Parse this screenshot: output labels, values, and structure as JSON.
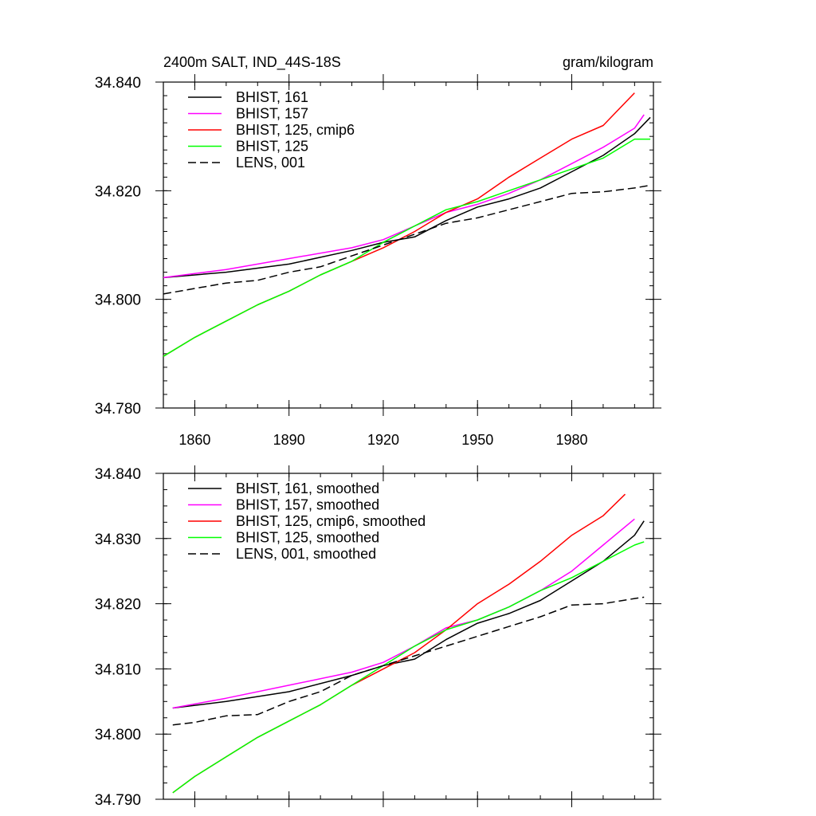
{
  "chart_data": [
    {
      "type": "line",
      "title": "2400m SALT, IND_44S-18S",
      "units": "gram/kilogram",
      "xlabel": "",
      "ylabel": "",
      "xlim": [
        1850,
        2006
      ],
      "ylim": [
        34.78,
        34.84
      ],
      "x_ticks": [
        1860,
        1890,
        1920,
        1950,
        1980
      ],
      "x_tick_labels": [
        "1860",
        "1890",
        "1920",
        "1950",
        "1980"
      ],
      "y_ticks": [
        34.78,
        34.8,
        34.82,
        34.84
      ],
      "y_tick_labels": [
        "34.780",
        "34.800",
        "34.820",
        "34.840"
      ],
      "legend_position": "top-left",
      "series": [
        {
          "name": "BHIST, 161",
          "color": "#000000",
          "dashed": false,
          "x": [
            1850,
            1870,
            1890,
            1910,
            1920,
            1930,
            1940,
            1950,
            1960,
            1970,
            1980,
            1990,
            2000,
            2005
          ],
          "y": [
            34.804,
            34.805,
            34.8065,
            34.809,
            34.8105,
            34.8115,
            34.8145,
            34.817,
            34.8185,
            34.8205,
            34.8235,
            34.8265,
            34.8305,
            34.8335
          ]
        },
        {
          "name": "BHIST, 157",
          "color": "#ff00ff",
          "dashed": false,
          "x": [
            1850,
            1870,
            1890,
            1910,
            1920,
            1930,
            1940,
            1950,
            1960,
            1970,
            1980,
            1990,
            2000,
            2003
          ],
          "y": [
            34.804,
            34.8055,
            34.8075,
            34.8095,
            34.811,
            34.8135,
            34.816,
            34.8175,
            34.8195,
            34.822,
            34.825,
            34.828,
            34.8315,
            34.834
          ]
        },
        {
          "name": "BHIST, 125, cmip6",
          "color": "#ff0000",
          "dashed": false,
          "x": [
            1850,
            1860,
            1870,
            1880,
            1890,
            1900,
            1910,
            1920,
            1930,
            1940,
            1950,
            1960,
            1970,
            1980,
            1990,
            2000
          ],
          "y": [
            34.7895,
            34.793,
            34.796,
            34.799,
            34.8015,
            34.8045,
            34.807,
            34.8095,
            34.8125,
            34.816,
            34.8185,
            34.8225,
            34.826,
            34.8295,
            34.832,
            34.838
          ]
        },
        {
          "name": "BHIST, 125",
          "color": "#00ff00",
          "dashed": false,
          "x": [
            1850,
            1860,
            1870,
            1880,
            1890,
            1900,
            1910,
            1920,
            1930,
            1940,
            1950,
            1960,
            1970,
            1980,
            1990,
            2000,
            2005
          ],
          "y": [
            34.7895,
            34.793,
            34.796,
            34.799,
            34.8015,
            34.8045,
            34.807,
            34.8105,
            34.8135,
            34.8165,
            34.818,
            34.82,
            34.822,
            34.824,
            34.826,
            34.8295,
            34.8295
          ]
        },
        {
          "name": "LENS, 001",
          "color": "#000000",
          "dashed": true,
          "x": [
            1850,
            1860,
            1870,
            1880,
            1890,
            1900,
            1910,
            1920,
            1930,
            1940,
            1950,
            1960,
            1970,
            1980,
            1990,
            2000,
            2005
          ],
          "y": [
            34.801,
            34.802,
            34.803,
            34.8035,
            34.805,
            34.806,
            34.808,
            34.81,
            34.812,
            34.814,
            34.815,
            34.8165,
            34.818,
            34.8195,
            34.8198,
            34.8205,
            34.821
          ]
        }
      ]
    },
    {
      "type": "line",
      "title": "",
      "xlabel": "",
      "ylabel": "",
      "xlim": [
        1850,
        2006
      ],
      "ylim": [
        34.79,
        34.84
      ],
      "x_ticks": [
        1860,
        1890,
        1920,
        1950,
        1980
      ],
      "y_ticks": [
        34.79,
        34.8,
        34.81,
        34.82,
        34.83,
        34.84
      ],
      "y_tick_labels": [
        "34.790",
        "34.800",
        "34.810",
        "34.820",
        "34.830",
        "34.840"
      ],
      "legend_position": "top-left",
      "series": [
        {
          "name": "BHIST, 161, smoothed",
          "color": "#000000",
          "dashed": false,
          "x": [
            1853,
            1870,
            1890,
            1910,
            1920,
            1930,
            1940,
            1950,
            1960,
            1970,
            1980,
            1990,
            2000,
            2003
          ],
          "y": [
            34.804,
            34.805,
            34.8065,
            34.809,
            34.8105,
            34.8115,
            34.8145,
            34.817,
            34.8185,
            34.8205,
            34.8235,
            34.8265,
            34.8305,
            34.8327
          ]
        },
        {
          "name": "BHIST, 157, smoothed",
          "color": "#ff00ff",
          "dashed": false,
          "x": [
            1853,
            1870,
            1890,
            1910,
            1920,
            1930,
            1940,
            1950,
            1960,
            1970,
            1980,
            1990,
            2000
          ],
          "y": [
            34.804,
            34.8055,
            34.8075,
            34.8095,
            34.811,
            34.8135,
            34.8163,
            34.8175,
            34.8195,
            34.822,
            34.825,
            34.829,
            34.833
          ]
        },
        {
          "name": "BHIST, 125, cmip6, smoothed",
          "color": "#ff0000",
          "dashed": false,
          "x": [
            1853,
            1860,
            1870,
            1880,
            1890,
            1900,
            1910,
            1920,
            1930,
            1940,
            1950,
            1960,
            1970,
            1980,
            1990,
            1997
          ],
          "y": [
            34.791,
            34.7935,
            34.7965,
            34.7995,
            34.802,
            34.8045,
            34.8075,
            34.81,
            34.8125,
            34.816,
            34.82,
            34.823,
            34.8265,
            34.8305,
            34.8335,
            34.8368
          ]
        },
        {
          "name": "BHIST, 125, smoothed",
          "color": "#00ff00",
          "dashed": false,
          "x": [
            1853,
            1860,
            1870,
            1880,
            1890,
            1900,
            1910,
            1920,
            1930,
            1940,
            1950,
            1960,
            1970,
            1980,
            1990,
            2000,
            2003
          ],
          "y": [
            34.791,
            34.7935,
            34.7965,
            34.7995,
            34.802,
            34.8045,
            34.8075,
            34.8105,
            34.8135,
            34.816,
            34.8175,
            34.8195,
            34.822,
            34.824,
            34.8265,
            34.829,
            34.8295
          ]
        },
        {
          "name": "LENS, 001, smoothed",
          "color": "#000000",
          "dashed": true,
          "x": [
            1853,
            1860,
            1870,
            1880,
            1890,
            1900,
            1910,
            1920,
            1930,
            1940,
            1950,
            1960,
            1970,
            1980,
            1990,
            2000,
            2003
          ],
          "y": [
            34.8014,
            34.8018,
            34.8028,
            34.803,
            34.805,
            34.8065,
            34.809,
            34.8105,
            34.812,
            34.8135,
            34.815,
            34.8165,
            34.818,
            34.8198,
            34.82,
            34.8208,
            34.821
          ]
        }
      ]
    }
  ]
}
